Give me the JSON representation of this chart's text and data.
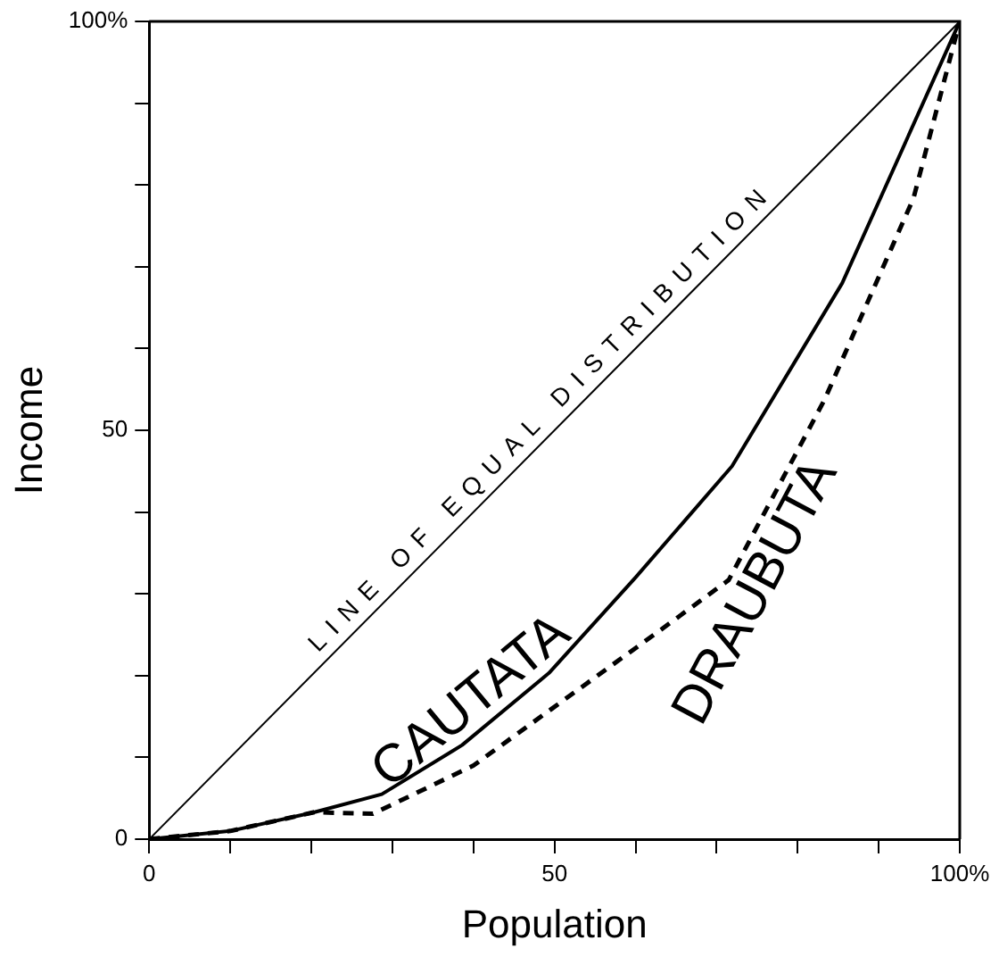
{
  "chart_data": {
    "type": "line",
    "xlabel": "Population",
    "ylabel": "Income",
    "xlim": [
      0,
      100
    ],
    "ylim": [
      0,
      100
    ],
    "xticks": [
      0,
      {
        "value": 10,
        "label": null
      },
      {
        "value": 20,
        "label": null
      },
      {
        "value": 30,
        "label": null
      },
      {
        "value": 40,
        "label": null
      },
      50,
      {
        "value": 60,
        "label": null
      },
      {
        "value": 70,
        "label": null
      },
      {
        "value": 80,
        "label": null
      },
      {
        "value": 90,
        "label": null
      },
      {
        "value": 100,
        "label": "100%"
      }
    ],
    "yticks": [
      0,
      {
        "value": 10,
        "label": null
      },
      {
        "value": 20,
        "label": null
      },
      {
        "value": 30,
        "label": null
      },
      {
        "value": 40,
        "label": null
      },
      50,
      {
        "value": 60,
        "label": null
      },
      {
        "value": 70,
        "label": null
      },
      {
        "value": 80,
        "label": null
      },
      {
        "value": 90,
        "label": null
      },
      {
        "value": 100,
        "label": "100%"
      }
    ],
    "grid": false,
    "legend": false,
    "marker": "none",
    "series": [
      {
        "name": "LINE OF EQUAL DISTRIBUTION",
        "color": "#000000",
        "line_style": "solid",
        "x": [
          0,
          100
        ],
        "values": [
          0,
          100
        ]
      },
      {
        "name": "CAUTATA",
        "color": "#000000",
        "line_style": "solid",
        "x": [
          0,
          10,
          20.4,
          28.7,
          38.6,
          49.3,
          60,
          71.9,
          85.5,
          100
        ],
        "values": [
          0,
          1,
          3.3,
          5.5,
          11.5,
          20.3,
          32,
          45.6,
          68,
          100
        ]
      },
      {
        "name": "DRAUBUTA",
        "color": "#000000",
        "line_style": "dashed",
        "x": [
          0,
          10,
          20.4,
          27.6,
          40,
          49.6,
          62.7,
          71.5,
          83.3,
          94.3,
          100
        ],
        "values": [
          0,
          1,
          3.3,
          3.1,
          9,
          15.9,
          25.3,
          31.7,
          53.7,
          78.4,
          100
        ]
      }
    ]
  }
}
